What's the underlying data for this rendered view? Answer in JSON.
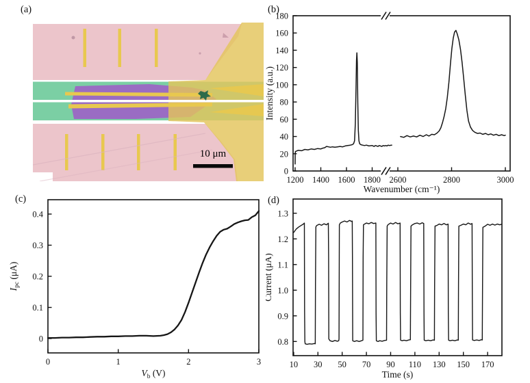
{
  "panels": {
    "a": {
      "label": "(a)",
      "description": "false-color optical micrograph of waveguide-integrated photodetector device",
      "scale_bar_label": "10 μm",
      "regions": {
        "substrate_pink": "#ecc5cb",
        "substrate_pink_shade": "#dfb2bd",
        "waveguide_green": "#7bcfa4",
        "flake_purple": "#9a6cc3",
        "electrode_gold": "#e8c84f",
        "contact_pad_gold": "#e3c45c",
        "gap_white": "#ffffff",
        "particle_dark_green": "#2e6b4a",
        "scale_bar_black": "#0a0a0a"
      }
    },
    "b": {
      "label": "(b)"
    },
    "c": {
      "label": "(c)"
    },
    "d": {
      "label": "(d)"
    }
  },
  "chart_data": [
    {
      "id": "b",
      "type": "line",
      "title": "",
      "xlabel": "Wavenumber (cm⁻¹)",
      "ylabel": "Intensity (a.u.)",
      "x_ticks": [
        1200,
        1400,
        1600,
        1800,
        2600,
        2800,
        3000
      ],
      "y_ticks": [
        0,
        20,
        40,
        60,
        80,
        100,
        120,
        140,
        160,
        180
      ],
      "x_break_between": [
        1800,
        2600
      ],
      "ylim": [
        0,
        180
      ],
      "grid": false,
      "legend": "none",
      "series": [
        {
          "name": "raman-segment-1",
          "x": [
            1200,
            1200.5,
            1202,
            1225,
            1250,
            1275,
            1300,
            1325,
            1350,
            1375,
            1400,
            1415,
            1430,
            1445,
            1460,
            1475,
            1490,
            1510,
            1530,
            1550,
            1570,
            1590,
            1610,
            1630,
            1645,
            1655,
            1663,
            1669,
            1674,
            1678,
            1681,
            1684,
            1688,
            1692,
            1697,
            1703,
            1712,
            1725,
            1740,
            1755,
            1775,
            1800,
            1830,
            1860,
            1900,
            1940,
            1980,
            2020,
            2060,
            2100,
            2140,
            2180,
            2220,
            2260,
            2300,
            2340,
            2380,
            2410
          ],
          "y": [
            8,
            20,
            22.5,
            24,
            23.5,
            25,
            24.5,
            25.5,
            25,
            26,
            25.5,
            26.5,
            27,
            28.5,
            28,
            27.5,
            28,
            27.5,
            28,
            28.5,
            28,
            29,
            29.5,
            30,
            30.5,
            31.5,
            35,
            55,
            95,
            128,
            137,
            126,
            80,
            47,
            35,
            31.5,
            30.5,
            30,
            29.5,
            30,
            29,
            29.5,
            29,
            28.5,
            29.5,
            29,
            28.5,
            29.5,
            29,
            28.5,
            29.5,
            29,
            29.5,
            29,
            30,
            29.5,
            29.8,
            30
          ]
        },
        {
          "name": "raman-segment-2",
          "x": [
            2610,
            2622,
            2634,
            2646,
            2658,
            2670,
            2682,
            2694,
            2706,
            2716,
            2726,
            2736,
            2746,
            2754,
            2760,
            2766,
            2772,
            2778,
            2784,
            2790,
            2796,
            2801,
            2806,
            2811,
            2816,
            2821,
            2827,
            2833,
            2839,
            2845,
            2851,
            2857,
            2863,
            2870,
            2878,
            2886,
            2896,
            2906,
            2916,
            2926,
            2936,
            2946,
            2956,
            2966,
            2976,
            2986,
            2996,
            3000
          ],
          "y": [
            40,
            39,
            41,
            39.5,
            40.5,
            39.5,
            41.5,
            40,
            42,
            40.5,
            42.5,
            42,
            44,
            46.5,
            50,
            56,
            63,
            72,
            85,
            103,
            125,
            142,
            154,
            161,
            163,
            159,
            152,
            141,
            126,
            107,
            88,
            70,
            58,
            51,
            47,
            45,
            43.5,
            44,
            42.5,
            43.5,
            42,
            43,
            41.5,
            42.5,
            41,
            42,
            41,
            41.5
          ]
        }
      ]
    },
    {
      "id": "c",
      "type": "line",
      "title": "",
      "xlabel": {
        "italic": "V",
        "sub": "b",
        "rest": " (V)"
      },
      "ylabel": {
        "italic": "I",
        "sub": "pc",
        "rest": " (μA)"
      },
      "x_ticks": [
        0,
        1,
        2,
        3
      ],
      "y_ticks": [
        "0",
        "0.1",
        "0.2",
        "0.3",
        "0.4"
      ],
      "xlim": [
        0,
        3
      ],
      "ylim": [
        -0.046,
        0.446
      ],
      "grid": false,
      "legend": "none",
      "series": [
        {
          "name": "photocurrent-vs-bias",
          "x": [
            0,
            0.1,
            0.2,
            0.3,
            0.4,
            0.5,
            0.6,
            0.7,
            0.8,
            0.9,
            1.0,
            1.1,
            1.2,
            1.3,
            1.4,
            1.5,
            1.6,
            1.65,
            1.7,
            1.75,
            1.8,
            1.85,
            1.9,
            1.95,
            2.0,
            2.05,
            2.1,
            2.15,
            2.2,
            2.25,
            2.3,
            2.35,
            2.4,
            2.45,
            2.5,
            2.55,
            2.6,
            2.65,
            2.7,
            2.75,
            2.8,
            2.85,
            2.9,
            2.95,
            3.0
          ],
          "y": [
            0.002,
            0.002,
            0.003,
            0.003,
            0.004,
            0.004,
            0.005,
            0.006,
            0.006,
            0.007,
            0.007,
            0.008,
            0.008,
            0.009,
            0.009,
            0.008,
            0.009,
            0.011,
            0.014,
            0.02,
            0.029,
            0.042,
            0.06,
            0.085,
            0.115,
            0.148,
            0.18,
            0.212,
            0.243,
            0.27,
            0.293,
            0.313,
            0.33,
            0.343,
            0.35,
            0.353,
            0.36,
            0.368,
            0.373,
            0.377,
            0.38,
            0.381,
            0.39,
            0.396,
            0.41
          ]
        }
      ]
    },
    {
      "id": "d",
      "type": "line",
      "title": "",
      "xlabel": "Time (s)",
      "ylabel": "Current (μA)",
      "x_ticks": [
        10,
        30,
        50,
        70,
        90,
        110,
        130,
        150,
        170
      ],
      "y_ticks": [
        "0.8",
        "0.9",
        "1.0",
        "1.1",
        "1.2",
        "1.3"
      ],
      "xlim": [
        9.5,
        181.8
      ],
      "ylim": [
        0.745,
        1.355
      ],
      "grid": false,
      "legend": "none",
      "on_level_uA": 1.26,
      "off_level_uA": 0.8,
      "period_s": 20,
      "series": [
        {
          "name": "on-off-photoswitching",
          "x": [
            10,
            12,
            14,
            16,
            18,
            18.8,
            19,
            19.2,
            19.5,
            21,
            23,
            25,
            27,
            27.8,
            28,
            28.3,
            29,
            31,
            33,
            35,
            37,
            38.6,
            38.8,
            39,
            40,
            42,
            44,
            46,
            47.2,
            47.4,
            47.7,
            48.5,
            50,
            52,
            54,
            56,
            58,
            58.3,
            58.5,
            58.7,
            60,
            62,
            64,
            66,
            67.1,
            67.3,
            67.6,
            68.5,
            70,
            72,
            74,
            76,
            77.8,
            78,
            78.2,
            79.5,
            81,
            83,
            85,
            86.6,
            86.8,
            87.1,
            88,
            90,
            92,
            94,
            96,
            97.8,
            98,
            98.2,
            99.5,
            101,
            103,
            105,
            106.3,
            106.5,
            106.8,
            108,
            110,
            112,
            114,
            116,
            117.3,
            117.5,
            117.7,
            119,
            121,
            123,
            125,
            126.1,
            126.3,
            126.6,
            128,
            130,
            132,
            134,
            136,
            137.4,
            137.6,
            137.8,
            139,
            141,
            143,
            145,
            145.8,
            146,
            146.3,
            148,
            150,
            152,
            154,
            156,
            157.2,
            157.4,
            157.6,
            159,
            161,
            163,
            165,
            165.6,
            165.8,
            166.1,
            168,
            170,
            172,
            174,
            176,
            178,
            180,
            181.5
          ],
          "y": [
            1.225,
            1.238,
            1.246,
            1.252,
            1.258,
            1.262,
            0.92,
            0.8,
            0.791,
            0.789,
            0.791,
            0.79,
            0.792,
            0.791,
            1.02,
            1.247,
            1.252,
            1.257,
            1.253,
            1.259,
            1.255,
            1.261,
            1.13,
            0.81,
            0.803,
            0.8,
            0.804,
            0.801,
            0.803,
            0.81,
            1.255,
            1.262,
            1.266,
            1.27,
            1.266,
            1.272,
            1.268,
            1.27,
            1.13,
            0.803,
            0.8,
            0.803,
            0.8,
            0.803,
            0.805,
            1.13,
            1.255,
            1.258,
            1.262,
            1.259,
            1.264,
            1.26,
            1.262,
            0.91,
            0.803,
            0.8,
            0.803,
            0.801,
            0.804,
            0.805,
            1.02,
            1.25,
            1.256,
            1.262,
            1.258,
            1.264,
            1.259,
            1.262,
            0.91,
            0.805,
            0.803,
            0.805,
            0.803,
            0.806,
            0.807,
            1.02,
            1.25,
            1.255,
            1.26,
            1.262,
            1.258,
            1.263,
            1.26,
            0.91,
            0.805,
            0.803,
            0.805,
            0.803,
            0.806,
            0.805,
            1.02,
            1.25,
            1.252,
            1.258,
            1.255,
            1.26,
            1.255,
            1.258,
            0.91,
            0.805,
            0.803,
            0.805,
            0.803,
            0.806,
            0.805,
            1.02,
            1.25,
            1.253,
            1.258,
            1.255,
            1.262,
            1.257,
            1.26,
            0.96,
            0.806,
            0.804,
            0.806,
            0.804,
            0.807,
            0.806,
            1.02,
            1.245,
            1.25,
            1.257,
            1.253,
            1.258,
            1.254,
            1.258,
            1.255,
            1.257
          ]
        }
      ]
    }
  ]
}
